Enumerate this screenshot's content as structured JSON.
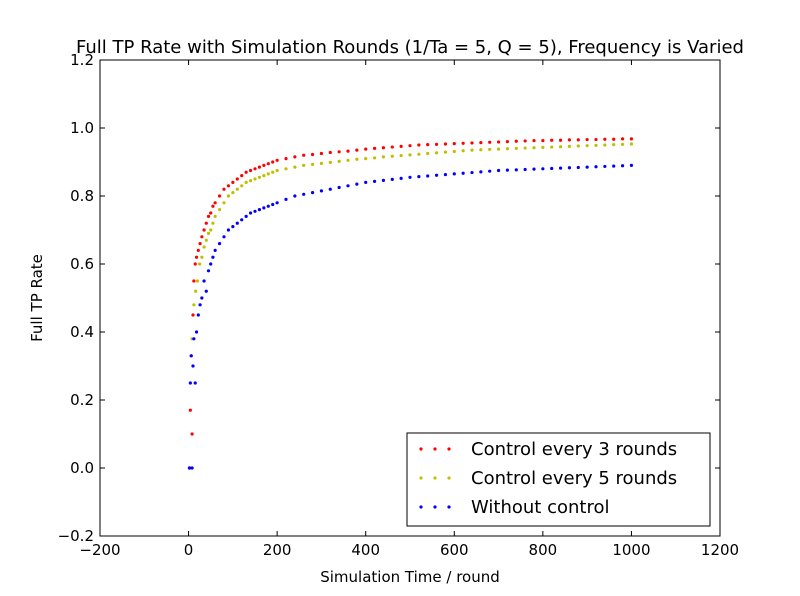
{
  "chart_data": {
    "type": "scatter",
    "title": "Full TP Rate with Simulation Rounds (1/Ta = 5, Q = 5), Frequency is Varied",
    "xlabel": "Simulation Time / round",
    "ylabel": "Full TP Rate",
    "xlim": [
      -200,
      1200
    ],
    "ylim": [
      -0.2,
      1.2
    ],
    "x_ticks": [
      "−200",
      "0",
      "200",
      "400",
      "600",
      "800",
      "1000",
      "1200"
    ],
    "y_ticks": [
      "−0.2",
      "0.0",
      "0.2",
      "0.4",
      "0.6",
      "0.8",
      "1.0",
      "1.2"
    ],
    "grid": false,
    "legend_position": "lower-right",
    "series": [
      {
        "name": "Control every 3 rounds",
        "color": "#ff0000",
        "x": [
          2,
          4,
          6,
          8,
          10,
          12,
          15,
          18,
          22,
          26,
          30,
          35,
          40,
          45,
          50,
          55,
          60,
          70,
          80,
          90,
          100,
          110,
          120,
          130,
          140,
          150,
          160,
          170,
          180,
          190,
          200,
          220,
          240,
          260,
          280,
          300,
          320,
          340,
          360,
          380,
          400,
          420,
          440,
          460,
          480,
          500,
          520,
          540,
          560,
          580,
          600,
          620,
          640,
          660,
          680,
          700,
          720,
          740,
          760,
          780,
          800,
          820,
          840,
          860,
          880,
          900,
          920,
          940,
          960,
          980,
          1000
        ],
        "y": [
          0.0,
          0.17,
          0.33,
          0.1,
          0.45,
          0.55,
          0.6,
          0.62,
          0.64,
          0.66,
          0.68,
          0.7,
          0.72,
          0.74,
          0.75,
          0.77,
          0.78,
          0.8,
          0.82,
          0.83,
          0.84,
          0.85,
          0.86,
          0.87,
          0.875,
          0.88,
          0.885,
          0.89,
          0.895,
          0.9,
          0.905,
          0.91,
          0.915,
          0.92,
          0.922,
          0.925,
          0.928,
          0.93,
          0.932,
          0.935,
          0.938,
          0.94,
          0.942,
          0.944,
          0.946,
          0.948,
          0.95,
          0.951,
          0.952,
          0.953,
          0.954,
          0.955,
          0.956,
          0.957,
          0.958,
          0.959,
          0.96,
          0.961,
          0.962,
          0.963,
          0.963,
          0.964,
          0.964,
          0.965,
          0.965,
          0.966,
          0.966,
          0.967,
          0.967,
          0.968,
          0.968
        ]
      },
      {
        "name": "Control every 5 rounds",
        "color": "#bfbf00",
        "x": [
          4,
          8,
          12,
          16,
          20,
          25,
          30,
          35,
          40,
          45,
          50,
          55,
          60,
          70,
          80,
          90,
          100,
          110,
          120,
          130,
          140,
          150,
          160,
          170,
          180,
          190,
          200,
          220,
          240,
          260,
          280,
          300,
          320,
          340,
          360,
          380,
          400,
          420,
          440,
          460,
          480,
          500,
          520,
          540,
          560,
          580,
          600,
          620,
          640,
          660,
          680,
          700,
          720,
          740,
          760,
          780,
          800,
          820,
          840,
          860,
          880,
          900,
          920,
          940,
          960,
          980,
          1000
        ],
        "y": [
          0.0,
          0.38,
          0.48,
          0.52,
          0.55,
          0.6,
          0.62,
          0.65,
          0.67,
          0.69,
          0.7,
          0.72,
          0.74,
          0.76,
          0.78,
          0.8,
          0.81,
          0.82,
          0.83,
          0.84,
          0.845,
          0.85,
          0.855,
          0.86,
          0.865,
          0.87,
          0.875,
          0.88,
          0.885,
          0.89,
          0.893,
          0.896,
          0.899,
          0.902,
          0.905,
          0.908,
          0.91,
          0.912,
          0.915,
          0.917,
          0.919,
          0.921,
          0.923,
          0.925,
          0.927,
          0.929,
          0.931,
          0.933,
          0.935,
          0.936,
          0.937,
          0.938,
          0.939,
          0.94,
          0.941,
          0.942,
          0.943,
          0.944,
          0.945,
          0.946,
          0.947,
          0.948,
          0.949,
          0.95,
          0.951,
          0.952,
          0.953
        ]
      },
      {
        "name": "Without control",
        "color": "#0000ff",
        "x": [
          2,
          4,
          6,
          8,
          10,
          12,
          15,
          18,
          22,
          26,
          30,
          35,
          40,
          45,
          50,
          55,
          60,
          70,
          80,
          90,
          100,
          110,
          120,
          130,
          140,
          150,
          160,
          170,
          180,
          190,
          200,
          220,
          240,
          260,
          280,
          300,
          320,
          340,
          360,
          380,
          400,
          420,
          440,
          460,
          480,
          500,
          520,
          540,
          560,
          580,
          600,
          620,
          640,
          660,
          680,
          700,
          720,
          740,
          760,
          780,
          800,
          820,
          840,
          860,
          880,
          900,
          920,
          940,
          960,
          980,
          1000
        ],
        "y": [
          0.0,
          0.25,
          0.33,
          0.0,
          0.3,
          0.38,
          0.25,
          0.4,
          0.45,
          0.48,
          0.5,
          0.55,
          0.52,
          0.58,
          0.6,
          0.62,
          0.64,
          0.66,
          0.68,
          0.7,
          0.71,
          0.72,
          0.73,
          0.74,
          0.75,
          0.755,
          0.76,
          0.765,
          0.77,
          0.775,
          0.78,
          0.79,
          0.8,
          0.805,
          0.81,
          0.815,
          0.82,
          0.825,
          0.83,
          0.835,
          0.84,
          0.843,
          0.846,
          0.849,
          0.852,
          0.855,
          0.857,
          0.859,
          0.861,
          0.863,
          0.865,
          0.867,
          0.869,
          0.871,
          0.873,
          0.875,
          0.876,
          0.877,
          0.878,
          0.879,
          0.88,
          0.881,
          0.882,
          0.883,
          0.884,
          0.885,
          0.886,
          0.887,
          0.888,
          0.889,
          0.89
        ]
      }
    ]
  }
}
